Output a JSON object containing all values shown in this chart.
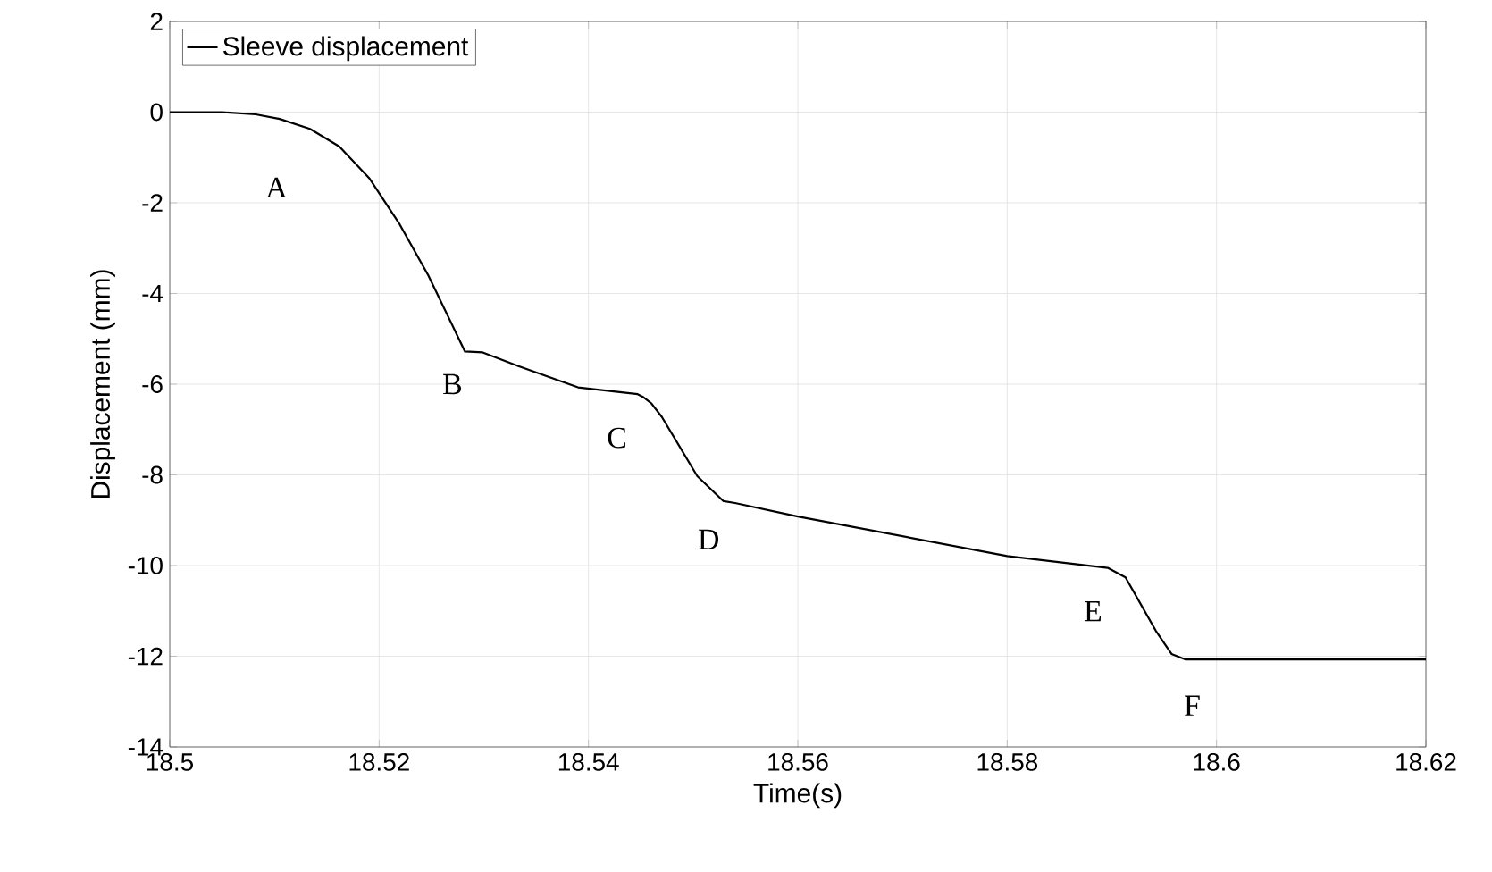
{
  "chart_data": {
    "type": "line",
    "xlabel": "Time(s)",
    "ylabel": "Displacement (mm)",
    "xlim": [
      18.5,
      18.62
    ],
    "xticks": [
      18.5,
      18.52,
      18.54,
      18.56,
      18.58,
      18.6,
      18.62
    ],
    "ylim": [
      -14,
      2
    ],
    "yticks": [
      -14,
      -12,
      -10,
      -8,
      -6,
      -4,
      -2,
      0,
      2
    ],
    "grid": true,
    "legend": "top left",
    "marker": "none",
    "line_style": "solid",
    "series": [
      {
        "name": "Sleeve displacement",
        "color": "#000000",
        "x": [
          18.5,
          18.505,
          18.5082,
          18.5105,
          18.5134,
          18.5162,
          18.5191,
          18.5219,
          18.5247,
          18.5282,
          18.5299,
          18.5333,
          18.539,
          18.5447,
          18.5452,
          18.546,
          18.547,
          18.5504,
          18.5529,
          18.554,
          18.56,
          18.58,
          18.5896,
          18.5913,
          18.5942,
          18.5957,
          18.597,
          18.62
        ],
        "values": [
          0,
          0,
          -0.05,
          -0.15,
          -0.37,
          -0.76,
          -1.47,
          -2.45,
          -3.6,
          -5.28,
          -5.3,
          -5.6,
          -6.07,
          -6.22,
          -6.28,
          -6.42,
          -6.72,
          -8.03,
          -8.58,
          -8.62,
          -8.92,
          -9.79,
          -10.05,
          -10.26,
          -11.44,
          -11.95,
          -12.07,
          -12.07
        ]
      }
    ],
    "annotations": [
      "A",
      "B",
      "C",
      "D",
      "E",
      "F"
    ]
  }
}
